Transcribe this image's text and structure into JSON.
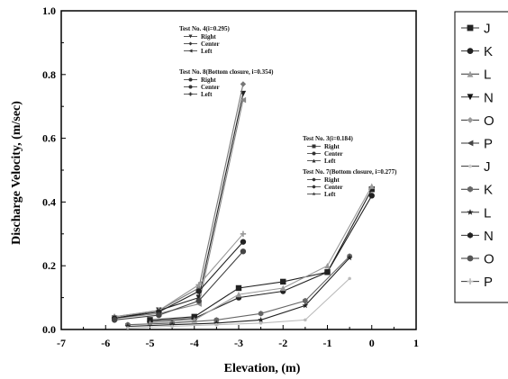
{
  "chart_data": {
    "type": "line",
    "xlabel": "Elevation, (m)",
    "ylabel": "Discharge Velocity, (m/sec)",
    "xlim": [
      -7,
      1
    ],
    "ylim": [
      0.0,
      1.0
    ],
    "x_ticks": [
      "-7",
      "-6",
      "-5",
      "-4",
      "-3",
      "-2",
      "-1",
      "0",
      "1"
    ],
    "y_ticks": [
      "0.0",
      "0.2",
      "0.4",
      "0.6",
      "0.8",
      "1.0"
    ],
    "grid": false,
    "legend_position": "right",
    "legend": [
      "J",
      "K",
      "L",
      "N",
      "O",
      "P",
      "J",
      "K",
      "L",
      "N",
      "O",
      "P"
    ],
    "annotations": [
      {
        "title": "Test No. 4(i=0.295)",
        "entries": [
          "Right",
          "Center",
          "Left"
        ]
      },
      {
        "title": "Test No. 8(Bottom closure, i=0.354)",
        "entries": [
          "Right",
          "Center",
          "Left"
        ]
      },
      {
        "title": "Test No. 3(i=0.184)",
        "entries": [
          "Right",
          "Center",
          "Left"
        ]
      },
      {
        "title": "Test No. 7(Bottom closure, i=0.277)",
        "entries": [
          "Right",
          "Center",
          "Left"
        ]
      }
    ],
    "series": [
      {
        "marker": "tri-down",
        "color": "#222222",
        "x": [
          -5.8,
          -4.8,
          -3.9,
          -2.9
        ],
        "y": [
          0.035,
          0.06,
          0.1,
          0.74
        ]
      },
      {
        "marker": "diamond",
        "color": "#777777",
        "x": [
          -5.8,
          -4.8,
          -3.9,
          -2.9
        ],
        "y": [
          0.04,
          0.06,
          0.13,
          0.77
        ]
      },
      {
        "marker": "tri-left",
        "color": "#888888",
        "x": [
          -5.8,
          -4.8,
          -3.9,
          -2.9
        ],
        "y": [
          0.035,
          0.05,
          0.08,
          0.72
        ]
      },
      {
        "marker": "plus",
        "color": "#999999",
        "x": [
          -5.8,
          -4.8,
          -3.9,
          -2.9
        ],
        "y": [
          0.04,
          0.06,
          0.14,
          0.3
        ]
      },
      {
        "marker": "circle",
        "color": "#222222",
        "x": [
          -5.8,
          -4.8,
          -3.9,
          -2.9
        ],
        "y": [
          0.035,
          0.055,
          0.12,
          0.275
        ]
      },
      {
        "marker": "circle",
        "color": "#444444",
        "x": [
          -5.8,
          -4.8,
          -3.9,
          -2.9
        ],
        "y": [
          0.03,
          0.045,
          0.09,
          0.245
        ]
      },
      {
        "marker": "square",
        "color": "#222222",
        "x": [
          -5.0,
          -4.0,
          -3.0,
          -2.0,
          -1.0,
          0.0
        ],
        "y": [
          0.03,
          0.04,
          0.13,
          0.15,
          0.18,
          0.44
        ]
      },
      {
        "marker": "circle",
        "color": "#222222",
        "x": [
          -5.0,
          -4.0,
          -3.0,
          -2.0,
          -1.0,
          0.0
        ],
        "y": [
          0.025,
          0.035,
          0.1,
          0.12,
          0.18,
          0.42
        ]
      },
      {
        "marker": "tri-up",
        "color": "#999999",
        "x": [
          -5.0,
          -4.0,
          -3.0,
          -2.0,
          -1.0,
          0.0
        ],
        "y": [
          0.02,
          0.03,
          0.11,
          0.13,
          0.2,
          0.45
        ]
      },
      {
        "marker": "hexagon",
        "color": "#666666",
        "x": [
          -5.5,
          -4.5,
          -3.5,
          -2.5,
          -1.5,
          -0.5
        ],
        "y": [
          0.015,
          0.02,
          0.03,
          0.05,
          0.09,
          0.23
        ]
      },
      {
        "marker": "star",
        "color": "#222222",
        "x": [
          -5.5,
          -4.5,
          -3.5,
          -2.5,
          -1.5,
          -0.5
        ],
        "y": [
          0.01,
          0.015,
          0.02,
          0.03,
          0.075,
          0.225
        ]
      },
      {
        "marker": "dot",
        "color": "#bbbbbb",
        "x": [
          -5.5,
          -4.5,
          -3.5,
          -2.5,
          -1.5,
          -0.5
        ],
        "y": [
          0.005,
          0.01,
          0.015,
          0.02,
          0.03,
          0.16
        ]
      }
    ]
  }
}
